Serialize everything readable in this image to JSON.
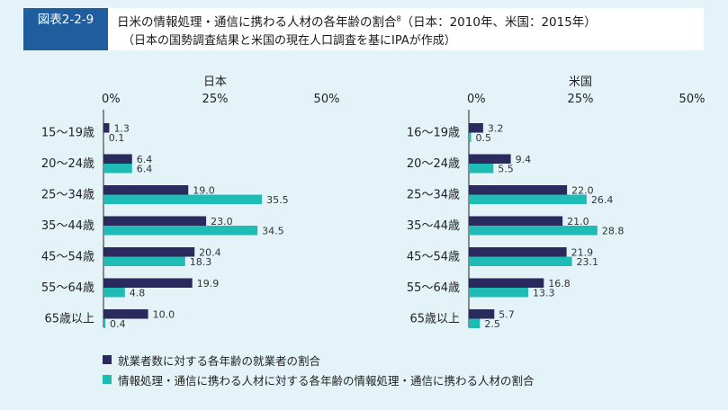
{
  "figure_label": "図表2-2-9",
  "title_line1": "日米の情報処理・通信に携わる人材の各年齢の割合",
  "title_footnote": "8",
  "title_line1_suffix": "（日本：2010年、米国：2015年）",
  "title_line2": "（日本の国勢調査結果と米国の現在人口調査を基にIPAが作成）",
  "colors": {
    "series1": "#2b2a5e",
    "series2": "#1fbcb6"
  },
  "legend": [
    "就業者数に対する各年齢の就業者の割合",
    "情報処理・通信に携わる人材に対する各年齢の情報処理・通信に携わる人材の割合"
  ],
  "chart_data": [
    {
      "type": "bar",
      "orientation": "horizontal",
      "title": "日本",
      "categories": [
        "15〜19歳",
        "20〜24歳",
        "25〜34歳",
        "35〜44歳",
        "45〜54歳",
        "55〜64歳",
        "65歳以上"
      ],
      "series": [
        {
          "name": "就業者数に対する各年齢の就業者の割合",
          "values": [
            1.3,
            6.4,
            19.0,
            23.0,
            20.4,
            19.9,
            10.0
          ]
        },
        {
          "name": "情報処理・通信に携わる人材に対する各年齢の情報処理・通信に携わる人材の割合",
          "values": [
            0.1,
            6.4,
            35.5,
            34.5,
            18.3,
            4.8,
            0.4
          ]
        }
      ],
      "value_labels": [
        [
          "1.3",
          "6.4",
          "19.0",
          "23.0",
          "20.4",
          "19.9",
          "10.0"
        ],
        [
          "0.1",
          "6.4",
          "35.5",
          "34.5",
          "18.3",
          "4.8",
          "0.4"
        ]
      ],
      "xlim": [
        0,
        50
      ],
      "ticks": [
        "0%",
        "25%",
        "50%"
      ],
      "xaxis_position": "top",
      "grid": false
    },
    {
      "type": "bar",
      "orientation": "horizontal",
      "title": "米国",
      "categories": [
        "16〜19歳",
        "20〜24歳",
        "25〜34歳",
        "35〜44歳",
        "45〜54歳",
        "55〜64歳",
        "65歳以上"
      ],
      "series": [
        {
          "name": "就業者数に対する各年齢の就業者の割合",
          "values": [
            3.2,
            9.4,
            22.0,
            21.0,
            21.9,
            16.8,
            5.7
          ]
        },
        {
          "name": "情報処理・通信に携わる人材に対する各年齢の情報処理・通信に携わる人材の割合",
          "values": [
            0.5,
            5.5,
            26.4,
            28.8,
            23.1,
            13.3,
            2.5
          ]
        }
      ],
      "value_labels": [
        [
          "3.2",
          "9.4",
          "22.0",
          "21.0",
          "21.9",
          "16.8",
          "5.7"
        ],
        [
          "0.5",
          "5.5",
          "26.4",
          "28.8",
          "23.1",
          "13.3",
          "2.5"
        ]
      ],
      "xlim": [
        0,
        50
      ],
      "ticks": [
        "0%",
        "25%",
        "50%"
      ],
      "xaxis_position": "top",
      "grid": false
    }
  ]
}
